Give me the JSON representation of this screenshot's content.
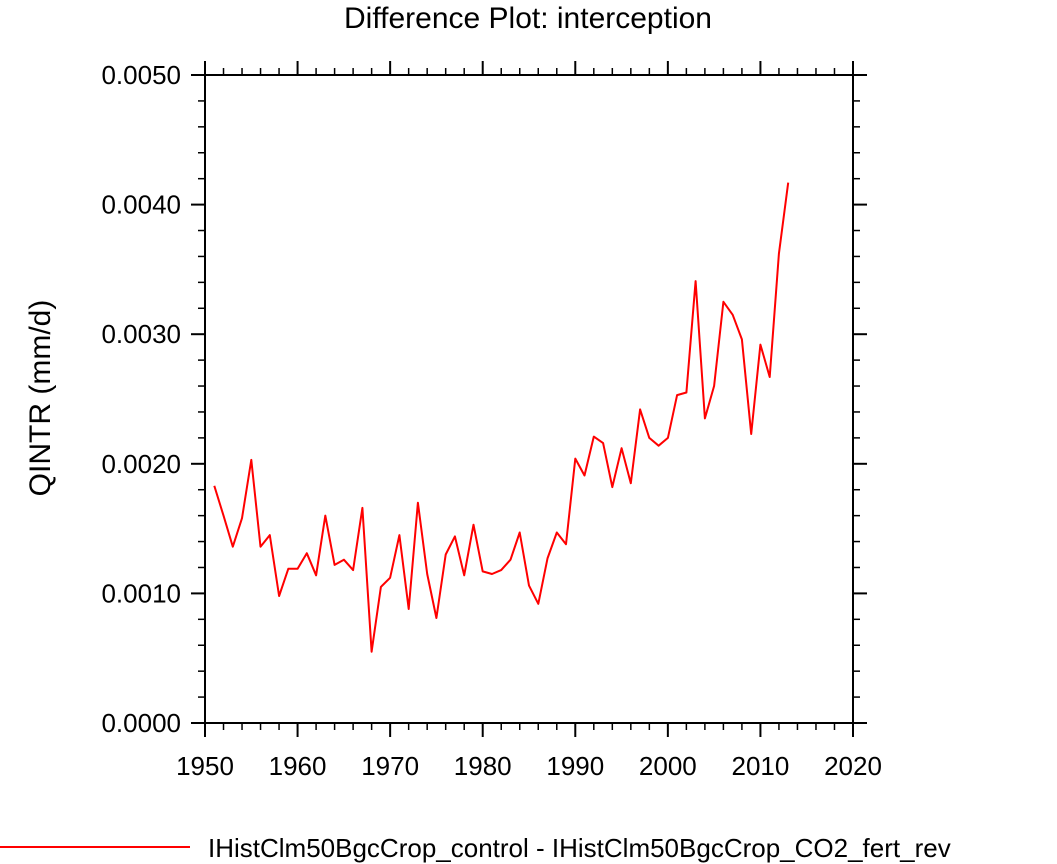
{
  "chart_data": {
    "type": "line",
    "title": "Difference Plot: interception",
    "xlabel": "",
    "ylabel": "QINTR  (mm/d)",
    "xlim": [
      1950,
      2020
    ],
    "ylim": [
      0.0,
      0.005
    ],
    "x_ticks": [
      "1950",
      "1960",
      "1970",
      "1980",
      "1990",
      "2000",
      "2010",
      "2020"
    ],
    "y_ticks": [
      "0.0000",
      "0.0010",
      "0.0020",
      "0.0030",
      "0.0040",
      "0.0050"
    ],
    "grid": false,
    "legend_position": "bottom",
    "series": [
      {
        "name": "IHistClm50BgcCrop_control - IHistClm50BgcCrop_CO2_fert_rev",
        "color": "#ff0000",
        "x": [
          1951,
          1952,
          1953,
          1954,
          1955,
          1956,
          1957,
          1958,
          1959,
          1960,
          1961,
          1962,
          1963,
          1964,
          1965,
          1966,
          1967,
          1968,
          1969,
          1970,
          1971,
          1972,
          1973,
          1974,
          1975,
          1976,
          1977,
          1978,
          1979,
          1980,
          1981,
          1982,
          1983,
          1984,
          1985,
          1986,
          1987,
          1988,
          1989,
          1990,
          1991,
          1992,
          1993,
          1994,
          1995,
          1996,
          1997,
          1998,
          1999,
          2000,
          2001,
          2002,
          2003,
          2004,
          2005,
          2006,
          2007,
          2008,
          2009,
          2010,
          2011,
          2012,
          2013
        ],
        "y": [
          0.00183,
          0.0016,
          0.00136,
          0.00158,
          0.00203,
          0.00136,
          0.00145,
          0.00098,
          0.00119,
          0.00119,
          0.00131,
          0.00114,
          0.0016,
          0.00122,
          0.00126,
          0.00118,
          0.00166,
          0.00055,
          0.00105,
          0.00112,
          0.00145,
          0.00088,
          0.0017,
          0.00115,
          0.00081,
          0.0013,
          0.00144,
          0.00114,
          0.00153,
          0.00117,
          0.00115,
          0.00118,
          0.00126,
          0.00147,
          0.00106,
          0.00092,
          0.00127,
          0.00147,
          0.00138,
          0.00204,
          0.00191,
          0.00221,
          0.00216,
          0.00182,
          0.00212,
          0.00185,
          0.00242,
          0.0022,
          0.00214,
          0.0022,
          0.00253,
          0.00255,
          0.00341,
          0.00235,
          0.0026,
          0.00325,
          0.00315,
          0.00296,
          0.00223,
          0.00292,
          0.00267,
          0.00362,
          0.00417
        ]
      }
    ]
  }
}
